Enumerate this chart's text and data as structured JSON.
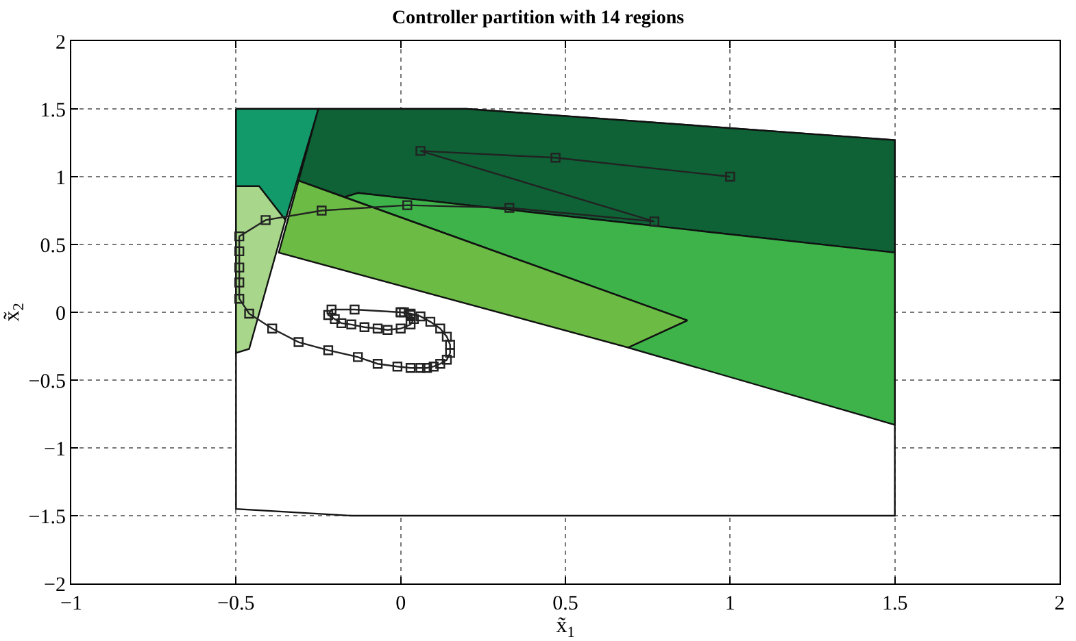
{
  "chart_data": {
    "type": "line",
    "title": "Controller partition with 14 regions",
    "xlabel": "x̃$_{1}$",
    "ylabel": "x̃$_{2}$",
    "xlim": [
      -1,
      2
    ],
    "ylim": [
      -2,
      2
    ],
    "xticks": [
      -1,
      -0.5,
      0,
      0.5,
      1,
      1.5,
      2
    ],
    "yticks": [
      -2,
      -1.5,
      -1,
      -0.5,
      0,
      0.5,
      1,
      1.5,
      2
    ],
    "grid": true,
    "legend": false,
    "series": [
      {
        "type": "area",
        "color": "#ffffff",
        "x": [
          -0.5,
          0.2,
          1.5,
          1.5,
          -0.15,
          -0.5,
          -0.5
        ],
        "values": [
          1.5,
          1.5,
          1.27,
          -1.5,
          -1.5,
          -1.45,
          1.5
        ]
      },
      {
        "type": "area",
        "color": "#139a6a",
        "x": [
          -0.5,
          -0.25,
          -0.35,
          -0.43,
          -0.5,
          -0.5
        ],
        "values": [
          1.5,
          1.5,
          0.68,
          0.93,
          0.93,
          1.5
        ]
      },
      {
        "type": "area",
        "color": "#a8d68a",
        "x": [
          -0.5,
          -0.43,
          -0.35,
          -0.46,
          -0.5,
          -0.5
        ],
        "values": [
          0.93,
          0.93,
          0.68,
          -0.27,
          -0.3,
          0.93
        ]
      },
      {
        "type": "area",
        "color": "#0e6236",
        "x": [
          -0.25,
          0.2,
          1.5,
          1.5,
          -0.13,
          -0.17,
          -0.31,
          -0.25
        ],
        "values": [
          1.5,
          1.5,
          1.27,
          0.44,
          0.88,
          0.85,
          0.97,
          1.5
        ]
      },
      {
        "type": "area",
        "color": "#3db34a",
        "x": [
          -0.17,
          -0.13,
          1.5,
          1.5,
          0.69,
          0.87,
          -0.17
        ],
        "values": [
          0.85,
          0.88,
          0.44,
          -0.83,
          -0.26,
          -0.06,
          0.85
        ]
      },
      {
        "type": "area",
        "color": "#6cbb45",
        "x": [
          -0.31,
          0.87,
          0.69,
          -0.37,
          -0.31
        ],
        "values": [
          0.97,
          -0.06,
          -0.26,
          0.44,
          0.97
        ]
      },
      {
        "color": "#222222",
        "marker": "square",
        "line_style": "solid",
        "x": [
          1,
          0.47,
          0.06,
          0.77,
          0.33,
          0.02,
          -0.24,
          -0.41,
          -0.49,
          -0.49,
          -0.49,
          -0.49,
          -0.49,
          -0.46,
          -0.39,
          -0.31,
          -0.22,
          -0.13,
          -0.07,
          -0.01,
          0.03,
          0.06,
          0.08,
          0.1,
          0.12,
          0.14,
          0.15,
          0.15,
          0.14,
          0.12,
          0.09,
          0.06,
          0.03,
          0.0,
          -0.14,
          -0.21,
          -0.22,
          -0.2,
          -0.18,
          -0.15,
          -0.11,
          -0.07,
          -0.04,
          0.0,
          0.03,
          0.04,
          0.03,
          0.01,
          0.0
        ],
        "values": [
          1,
          1.14,
          1.19,
          0.67,
          0.77,
          0.79,
          0.75,
          0.68,
          0.56,
          0.45,
          0.33,
          0.22,
          0.1,
          -0.01,
          -0.12,
          -0.22,
          -0.28,
          -0.33,
          -0.38,
          -0.4,
          -0.41,
          -0.41,
          -0.41,
          -0.4,
          -0.38,
          -0.35,
          -0.3,
          -0.24,
          -0.18,
          -0.12,
          -0.07,
          -0.03,
          -0.01,
          0.0,
          0.02,
          0.02,
          -0.02,
          -0.05,
          -0.08,
          -0.09,
          -0.11,
          -0.12,
          -0.13,
          -0.12,
          -0.09,
          -0.05,
          -0.02,
          0.0,
          0.0
        ]
      }
    ]
  }
}
